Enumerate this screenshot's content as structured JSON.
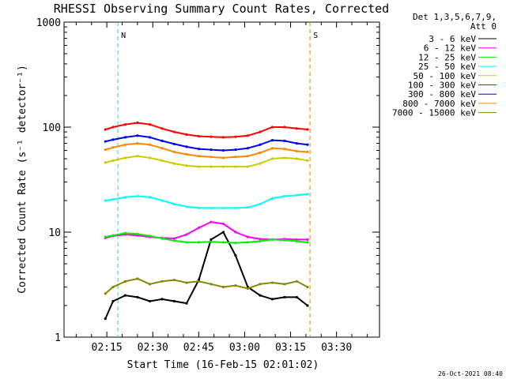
{
  "chart_data": {
    "type": "line",
    "title": "RHESSI Observing Summary Count Rates, Corrected",
    "xlabel": "Start Time (16-Feb-15 02:01:02)",
    "ylabel": "Corrected Count Rate (s⁻¹ detector⁻¹)",
    "y_scale": "log",
    "ylim": [
      1,
      1000
    ],
    "xlim_minutes_after_start": [
      0,
      103
    ],
    "x_ticks": [
      {
        "label": "02:15",
        "minutes": 13.97
      },
      {
        "label": "02:30",
        "minutes": 28.97
      },
      {
        "label": "02:45",
        "minutes": 43.97
      },
      {
        "label": "03:00",
        "minutes": 58.97
      },
      {
        "label": "03:15",
        "minutes": 73.97
      },
      {
        "label": "03:30",
        "minutes": 88.97
      }
    ],
    "y_ticks": [
      {
        "label": "1",
        "value": 1
      },
      {
        "label": "10",
        "value": 10
      },
      {
        "label": "100",
        "value": 100
      },
      {
        "label": "1000",
        "value": 1000
      }
    ],
    "legend_header": [
      "Det 1,3,5,6,7,9,",
      "Att 0"
    ],
    "legend_placement": "right",
    "markers": [
      {
        "label": "N",
        "minutes": 17.6,
        "color": "#00e0ff"
      },
      {
        "label": "S",
        "minutes": 80.3,
        "color": "#e08000"
      }
    ],
    "x_minutes": [
      13.5,
      16,
      20,
      24,
      28,
      32,
      36,
      40,
      44,
      48,
      52,
      56,
      60,
      64,
      68,
      72,
      76,
      79.5
    ],
    "series": [
      {
        "name": "3 - 6 keV",
        "color": "#000000",
        "values": [
          1.5,
          2.2,
          2.5,
          2.4,
          2.2,
          2.3,
          2.2,
          2.1,
          3.5,
          8.5,
          10,
          6,
          3,
          2.5,
          2.3,
          2.4,
          2.4,
          2.0
        ]
      },
      {
        "name": "6 - 12 keV",
        "color": "#ff00ff",
        "values": [
          8.8,
          9.2,
          9.5,
          9.3,
          9.0,
          8.8,
          8.7,
          9.5,
          11,
          12.5,
          12,
          10,
          9,
          8.6,
          8.5,
          8.6,
          8.5,
          8.5
        ]
      },
      {
        "name": "12 - 25 keV",
        "color": "#00ee00",
        "values": [
          9.0,
          9.3,
          9.8,
          9.6,
          9.2,
          8.7,
          8.3,
          8.0,
          8.0,
          8.1,
          8.0,
          7.9,
          8.0,
          8.2,
          8.5,
          8.4,
          8.2,
          8.0
        ]
      },
      {
        "name": "25 - 50 keV",
        "color": "#00ffff",
        "values": [
          20,
          20.5,
          21.5,
          22,
          21.5,
          20,
          18.5,
          17.5,
          17.0,
          17.0,
          17.0,
          17.0,
          17.2,
          18.5,
          21,
          22,
          22.5,
          23
        ]
      },
      {
        "name": "50 - 100 keV",
        "color": "#cccc00",
        "values": [
          46,
          48,
          51,
          53,
          51,
          48,
          45,
          43,
          42,
          42,
          42,
          42,
          42,
          45,
          50,
          51,
          50,
          48
        ]
      },
      {
        "name": "100 - 300 keV",
        "color": "#ff0000",
        "values": [
          95,
          100,
          106,
          110,
          106,
          97,
          90,
          85,
          82,
          81,
          80,
          81,
          83,
          90,
          100,
          100,
          97,
          95
        ]
      },
      {
        "name": "300 - 800 keV",
        "color": "#0000ff",
        "values": [
          73,
          76,
          80,
          83,
          80,
          74,
          69,
          65,
          62,
          61,
          60,
          61,
          63,
          68,
          75,
          74,
          70,
          68
        ]
      },
      {
        "name": "800 - 7000 keV",
        "color": "#ff8800",
        "values": [
          61,
          64,
          68,
          70,
          68,
          63,
          58,
          55,
          53,
          52,
          51,
          52,
          53,
          57,
          63,
          62,
          59,
          58
        ]
      },
      {
        "name": "7000 - 15000 keV",
        "color": "#888800",
        "values": [
          2.6,
          3.0,
          3.4,
          3.6,
          3.2,
          3.4,
          3.5,
          3.3,
          3.4,
          3.2,
          3.0,
          3.1,
          2.9,
          3.2,
          3.3,
          3.2,
          3.4,
          3.0
        ]
      }
    ]
  },
  "footer_timestamp": "26-Oct-2021 08:40"
}
